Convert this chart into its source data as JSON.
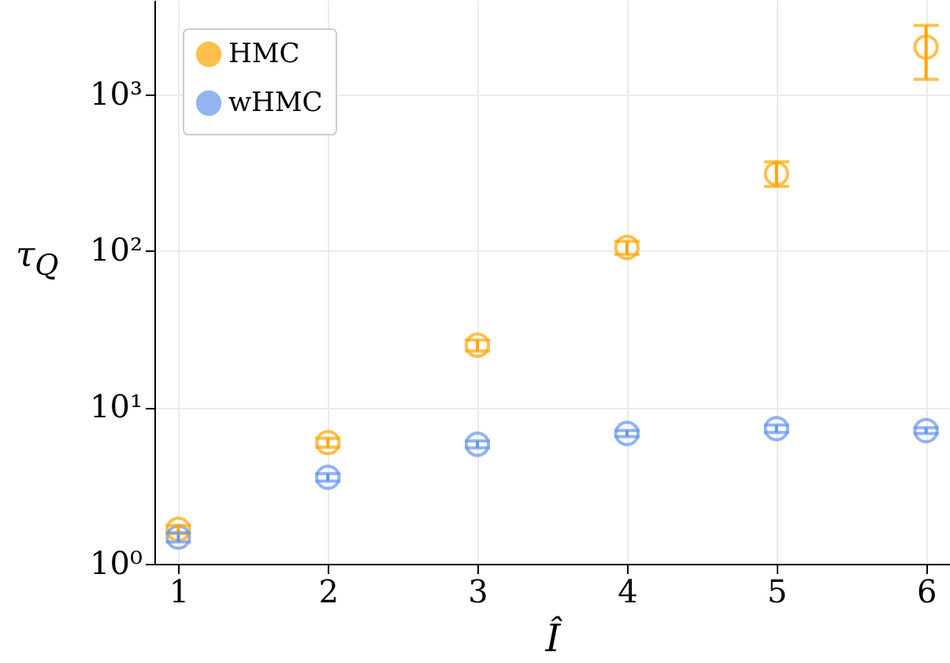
{
  "chart_data": {
    "type": "scatter",
    "xlabel": "Î",
    "ylabel": "τ$_{Q}$",
    "log": "y",
    "grid": true,
    "legend": "top left",
    "marker": "circle",
    "x": [
      1,
      2,
      3,
      4,
      5,
      6
    ],
    "xlim": [
      0.84,
      6.16
    ],
    "xticks": [
      1,
      2,
      3,
      4,
      5,
      6
    ],
    "ylim": [
      1,
      4000
    ],
    "yticks": [
      {
        "value": 1,
        "label": "10⁰"
      },
      {
        "value": 10,
        "label": "10¹"
      },
      {
        "value": 100,
        "label": "10²"
      },
      {
        "value": 1000,
        "label": "10³"
      }
    ],
    "series": [
      {
        "name": "HMC",
        "color": "#ffa500",
        "values": [
          1.66,
          5.95,
          24.9,
          105,
          310,
          2000
        ],
        "errors": [
          0.1,
          0.4,
          2,
          10,
          [
            258,
            370
          ],
          [
            1245,
            2750
          ]
        ]
      },
      {
        "name": "wHMC",
        "color": "#6495ed",
        "values": [
          1.48,
          3.57,
          5.8,
          6.8,
          7.3,
          7.1
        ],
        "errors": [
          0.1,
          0.2,
          0.3,
          0.3,
          0.4,
          0.3
        ]
      }
    ]
  }
}
